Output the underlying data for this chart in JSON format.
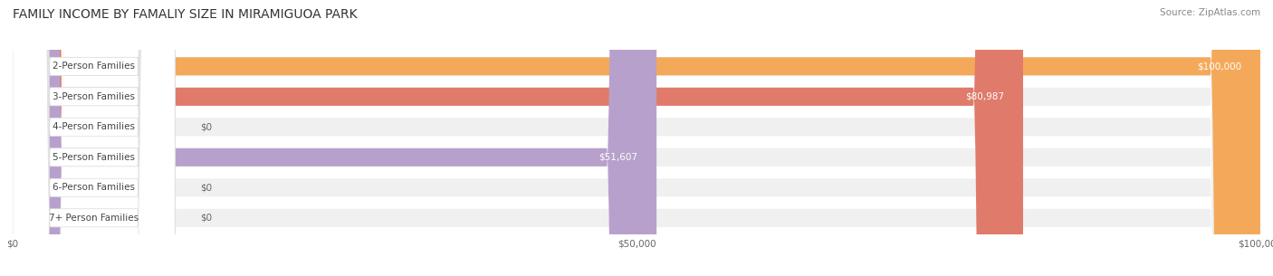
{
  "title": "FAMILY INCOME BY FAMALIY SIZE IN MIRAMIGUOA PARK",
  "source": "Source: ZipAtlas.com",
  "categories": [
    "2-Person Families",
    "3-Person Families",
    "4-Person Families",
    "5-Person Families",
    "6-Person Families",
    "7+ Person Families"
  ],
  "values": [
    100000,
    80987,
    0,
    51607,
    0,
    0
  ],
  "bar_colors": [
    "#F4A95A",
    "#E07A6A",
    "#A8C4E0",
    "#B8A0CC",
    "#6EC4C0",
    "#B0B8D8"
  ],
  "bar_bg_color": "#F0F0F0",
  "label_bg_color": "#FFFFFF",
  "value_labels": [
    "$100,000",
    "$80,987",
    "$0",
    "$51,607",
    "$0",
    "$0"
  ],
  "xlim": [
    0,
    100000
  ],
  "xticks": [
    0,
    50000,
    100000
  ],
  "xtick_labels": [
    "$0",
    "$50,000",
    "$100,000"
  ],
  "figsize": [
    14.06,
    3.05
  ],
  "dpi": 100,
  "background_color": "#FFFFFF",
  "bar_height": 0.6,
  "title_fontsize": 10,
  "label_fontsize": 7.5,
  "value_fontsize": 7.5,
  "source_fontsize": 7.5,
  "grid_color": "#CCCCCC"
}
